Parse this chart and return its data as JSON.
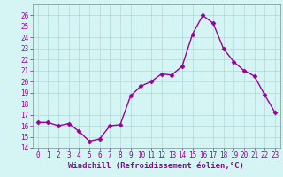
{
  "x": [
    0,
    1,
    2,
    3,
    4,
    5,
    6,
    7,
    8,
    9,
    10,
    11,
    12,
    13,
    14,
    15,
    16,
    17,
    18,
    19,
    20,
    21,
    22,
    23
  ],
  "y": [
    16.3,
    16.3,
    16.0,
    16.2,
    15.5,
    14.6,
    14.8,
    16.0,
    16.1,
    18.7,
    19.6,
    20.0,
    20.7,
    20.6,
    21.4,
    24.3,
    26.0,
    25.3,
    23.0,
    21.8,
    21.0,
    20.5,
    18.8,
    17.2
  ],
  "line_color": "#990099",
  "marker": "D",
  "markersize": 2.5,
  "linewidth": 1.0,
  "xlabel": "Windchill (Refroidissement éolien,°C)",
  "xlabel_fontsize": 6.5,
  "ylim": [
    14,
    27
  ],
  "xlim": [
    -0.5,
    23.5
  ],
  "yticks": [
    14,
    15,
    16,
    17,
    18,
    19,
    20,
    21,
    22,
    23,
    24,
    25,
    26
  ],
  "xticks": [
    0,
    1,
    2,
    3,
    4,
    5,
    6,
    7,
    8,
    9,
    10,
    11,
    12,
    13,
    14,
    15,
    16,
    17,
    18,
    19,
    20,
    21,
    22,
    23
  ],
  "tick_fontsize": 5.5,
  "background_color": "#d5f5f5",
  "grid_color": "#b0d8d8",
  "spine_color": "#888888"
}
